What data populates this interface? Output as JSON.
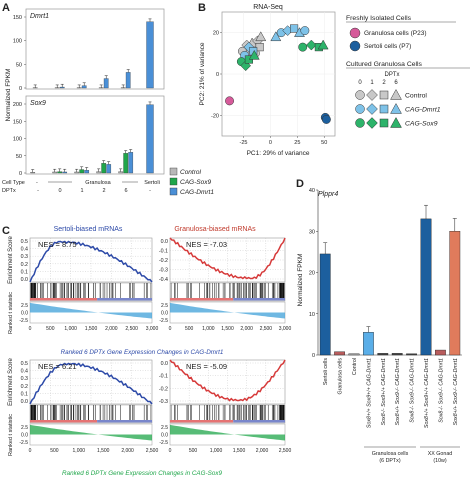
{
  "panels": {
    "A": {
      "letter": "A",
      "plot_top": {
        "gene": "Dmrt1",
        "yticks": [
          "0",
          "50",
          "100",
          "150"
        ],
        "max": 150
      },
      "plot_bottom": {
        "gene": "Sox9",
        "yticks": [
          "0",
          "50",
          "100",
          "150",
          "200"
        ],
        "max": 200
      },
      "ylabel": "Normalized FPKM",
      "row_labels": {
        "cell_type": "Cell Type",
        "dptx": "DPTx"
      },
      "dptx_ticks": [
        "-",
        "0",
        "1",
        "2",
        "6",
        "-"
      ],
      "groups": {
        "granulosa": "Granulosa",
        "sertoli": "Sertoli"
      },
      "legend": [
        {
          "label": "Control",
          "color": "#b8b8b8"
        },
        {
          "label": "CAG-Sox9",
          "color": "#1fa64a"
        },
        {
          "label": "CAG-Dmrt1",
          "color": "#4a8fd6"
        }
      ]
    },
    "B": {
      "letter": "B",
      "title": "RNA-Seq",
      "xlabel": "PC1: 29% of variance",
      "ylabel": "PC2: 21% of variance",
      "xticks": [
        "-25",
        "0",
        "25",
        "50"
      ],
      "yticks": [
        "-20",
        "0",
        "20"
      ],
      "legend": {
        "fresh_title": "Freshly Isolated Cells",
        "fresh": [
          {
            "label": "Granulosa cells (P23)",
            "color": "#d65a9a"
          },
          {
            "label": "Sertoli cells (P7)",
            "color": "#1c5f9e"
          }
        ],
        "cultured_title": "Cultured Granulosa Cells",
        "dptx_label": "DPTx",
        "dptx_values": [
          "0",
          "1",
          "2",
          "6"
        ],
        "cultured": [
          {
            "label": "Control",
            "color": "#c8c8c8"
          },
          {
            "label": "CAG-Dmrt1",
            "color": "#7ec2e8"
          },
          {
            "label": "CAG-Sox9",
            "color": "#2db36a"
          }
        ]
      }
    },
    "C": {
      "letter": "C",
      "top": {
        "left_title": "Sertoli-biased mRNAs",
        "right_title": "Granulosa-biased mRNAs",
        "left_nes": "NES = 8.75",
        "right_nes": "NES = -7.03",
        "left_yticks": [
          "0.5",
          "0.4",
          "0.3",
          "0.2",
          "0.1",
          "0.0"
        ],
        "right_yticks": [
          "0.0",
          "-0.1",
          "-0.2",
          "-0.3",
          "-0.4"
        ],
        "ranked_yticks": [
          "2.5",
          "0.0",
          "-2.5"
        ],
        "xticks": [
          "0",
          "500",
          "1,000",
          "1,500",
          "2,000",
          "2,500",
          "3,000"
        ],
        "xlabel": "Ranked 6 DPTx Gene Expression Changes in CAG-Dmrt1"
      },
      "bottom": {
        "left_nes": "NES = 6.21",
        "right_nes": "NES = -5.09",
        "left_yticks": [
          "0.5",
          "0.4",
          "0.3",
          "0.2",
          "0.1",
          "0.0"
        ],
        "right_yticks": [
          "0.0",
          "-0.1",
          "-0.2",
          "-0.3"
        ],
        "ranked_yticks": [
          "2.5",
          "0.0",
          "-2.5"
        ],
        "xticks": [
          "0",
          "500",
          "1,000",
          "1,500",
          "2,000",
          "2,500"
        ],
        "xlabel": "Ranked 6 DPTx Gene Expression Changes in CAG-Sox9"
      },
      "enrichment_label": "Enrichment Score",
      "ranked_label": "Ranked t statistic"
    },
    "D": {
      "letter": "D",
      "gene": "Plppr4",
      "ylabel": "Normalized FPKM",
      "yticks": [
        "0",
        "10",
        "20",
        "30",
        "40"
      ],
      "group_granulosa": "Granulosa cells (6 DPTx)",
      "group_gonad": "XX Gonad (10w)"
    }
  },
  "chart_data": [
    {
      "type": "bar",
      "title": "Dmrt1",
      "ylabel": "Normalized FPKM",
      "ylim": [
        0,
        150
      ],
      "categories": [
        "Granulosa -",
        "Granulosa 0",
        "Granulosa 1",
        "Granulosa 2",
        "Granulosa 6",
        "Sertoli -"
      ],
      "series": [
        {
          "name": "Control",
          "values": [
            0.5,
            0.5,
            0.5,
            0.5,
            0.5,
            null
          ]
        },
        {
          "name": "CAG-Dmrt1",
          "values": [
            null,
            2,
            5,
            20,
            33,
            140
          ]
        }
      ]
    },
    {
      "type": "bar",
      "title": "Sox9",
      "ylabel": "Normalized FPKM",
      "ylim": [
        0,
        200
      ],
      "categories": [
        "Granulosa -",
        "Granulosa 0",
        "Granulosa 1",
        "Granulosa 2",
        "Granulosa 6",
        "Sertoli -"
      ],
      "series": [
        {
          "name": "Control",
          "values": [
            2,
            3,
            3,
            4,
            4,
            null
          ]
        },
        {
          "name": "CAG-Sox9",
          "values": [
            null,
            4,
            10,
            28,
            57,
            null
          ]
        },
        {
          "name": "CAG-Dmrt1",
          "values": [
            null,
            3,
            8,
            25,
            60,
            198
          ]
        }
      ]
    },
    {
      "type": "scatter",
      "title": "RNA-Seq",
      "xlabel": "PC1: 29% of variance",
      "ylabel": "PC2: 21% of variance",
      "xlim": [
        -45,
        60
      ],
      "ylim": [
        -30,
        30
      ],
      "series": [
        {
          "name": "Granulosa cells (P23)",
          "x": [
            -38
          ],
          "y": [
            -13
          ]
        },
        {
          "name": "Sertoli cells (P7)",
          "x": [
            51,
            52
          ],
          "y": [
            -21,
            -22
          ]
        },
        {
          "name": "Control",
          "x": [
            -26,
            -22,
            -19,
            -17,
            -14,
            -12,
            -10,
            -9
          ],
          "y": [
            11,
            14,
            12,
            15,
            10,
            16,
            13,
            18
          ]
        },
        {
          "name": "CAG-Dmrt1",
          "x": [
            -24,
            -20,
            -16,
            5,
            10,
            16,
            22,
            27,
            32
          ],
          "y": [
            9,
            13,
            11,
            18,
            20,
            21,
            22,
            20,
            21
          ]
        },
        {
          "name": "CAG-Sox9",
          "x": [
            -27,
            -23,
            -20,
            -15,
            30,
            38,
            45,
            49
          ],
          "y": [
            6,
            4,
            7,
            9,
            13,
            14,
            13,
            14
          ]
        }
      ]
    },
    {
      "type": "bar",
      "title": "Plppr4",
      "ylabel": "Normalized FPKM",
      "ylim": [
        0,
        40
      ],
      "categories": [
        "Sertoli cells",
        "Granulosa cells",
        "Control",
        "Sox8+/+ Sox9+/+ CAG-Dmrt1",
        "Sox8-/- Sox9+/+ CAG-Dmrt1",
        "Sox8+/+ Sox9-/- CAG-Dmrt1",
        "Sox8-/- Sox9-/- CAG-Dmrt1",
        "Sox8+/+ Sox9+/+ CAG-Dmrt1 (gonad)",
        "Sox8-/- Sox9-/- CAG-Dmrt1 (gonad)",
        "Sox8+/+ Sox9-/- CAG-Dmrt1 (gonad)"
      ],
      "values": [
        24.5,
        0.8,
        0.3,
        5.5,
        0.4,
        0.4,
        0.3,
        33,
        1.2,
        30
      ]
    }
  ]
}
